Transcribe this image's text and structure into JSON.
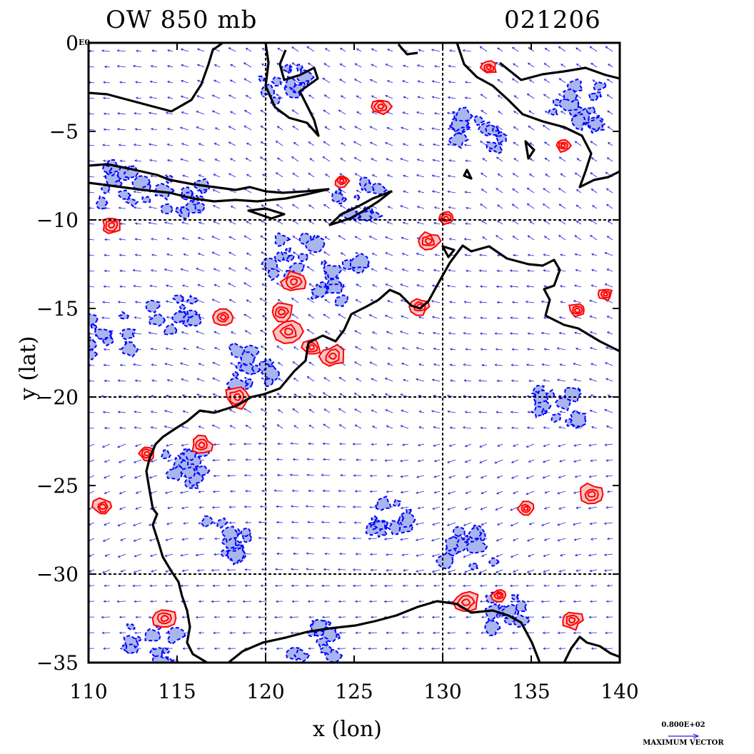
{
  "header": {
    "title_left": "OW 850 mb",
    "title_right": "021206",
    "lat_exponent": "E0"
  },
  "legend": {
    "vector_value": "0.800E+02",
    "vector_label": "MAXIMUM VECTOR"
  },
  "colors": {
    "positive_contour": "#ff0000",
    "positive_fill": "#f7c4c4",
    "negative_contour": "#0000ff",
    "negative_fill": "#a9b6ee",
    "coastline": "#000000",
    "vectors": "#2222dd",
    "grid": "#000000"
  },
  "chart_data": {
    "type": "contour",
    "title": "OW 850 mb",
    "subtitle": "021206",
    "xlabel": "x (lon)",
    "ylabel": "y (lat)",
    "xlim": [
      110,
      140
    ],
    "ylim": [
      -35,
      0
    ],
    "xticks": [
      110,
      115,
      120,
      125,
      130,
      135,
      140
    ],
    "xtick_labels": [
      "110",
      "115",
      "120",
      "125",
      "130",
      "135",
      "140"
    ],
    "yticks": [
      0,
      -5,
      -10,
      -15,
      -20,
      -25,
      -30,
      -35
    ],
    "ytick_labels": [
      "0",
      "−5",
      "−10",
      "−15",
      "−20",
      "−25",
      "−30",
      "−35"
    ],
    "grid_lon": [
      120,
      130
    ],
    "grid_lat": [
      -10,
      -20,
      -30
    ],
    "fields": [
      "Okubo-Weiss parameter contours (positive red, negative blue)",
      "wind vectors"
    ],
    "features": {
      "positive_cells": [
        {
          "lon": 111.3,
          "lat": -10.3
        },
        {
          "lon": 117.6,
          "lat": -15.5
        },
        {
          "lon": 118.4,
          "lat": -20.0
        },
        {
          "lon": 121.3,
          "lat": -16.3
        },
        {
          "lon": 122.6,
          "lat": -17.2
        },
        {
          "lon": 123.8,
          "lat": -17.7
        },
        {
          "lon": 120.9,
          "lat": -15.2
        },
        {
          "lon": 130.2,
          "lat": -9.9
        },
        {
          "lon": 129.2,
          "lat": -11.2
        },
        {
          "lon": 136.8,
          "lat": -5.8
        },
        {
          "lon": 137.6,
          "lat": -15.1
        },
        {
          "lon": 139.2,
          "lat": -14.2
        },
        {
          "lon": 110.8,
          "lat": -26.2
        },
        {
          "lon": 114.3,
          "lat": -32.5
        },
        {
          "lon": 113.3,
          "lat": -23.2
        },
        {
          "lon": 116.4,
          "lat": -22.7
        },
        {
          "lon": 134.7,
          "lat": -26.3
        },
        {
          "lon": 138.4,
          "lat": -25.5
        },
        {
          "lon": 131.3,
          "lat": -31.6
        },
        {
          "lon": 133.2,
          "lat": -31.2
        },
        {
          "lon": 137.3,
          "lat": -32.6
        },
        {
          "lon": 124.3,
          "lat": -7.8
        },
        {
          "lon": 126.5,
          "lat": -3.6
        },
        {
          "lon": 132.6,
          "lat": -1.4
        },
        {
          "lon": 121.6,
          "lat": -13.5
        },
        {
          "lon": 128.7,
          "lat": -14.9
        }
      ],
      "negative_regions": [
        {
          "lon": 121.0,
          "lat": -2.5
        },
        {
          "lon": 112.0,
          "lat": -8.0
        },
        {
          "lon": 115.5,
          "lat": -8.6
        },
        {
          "lon": 111.0,
          "lat": -16.5
        },
        {
          "lon": 114.8,
          "lat": -15.5
        },
        {
          "lon": 119.5,
          "lat": -18.5
        },
        {
          "lon": 121.5,
          "lat": -12.0
        },
        {
          "lon": 124.0,
          "lat": -13.5
        },
        {
          "lon": 127.5,
          "lat": -26.5
        },
        {
          "lon": 131.5,
          "lat": -28.5
        },
        {
          "lon": 133.5,
          "lat": -32.0
        },
        {
          "lon": 137.5,
          "lat": -3.5
        },
        {
          "lon": 115.0,
          "lat": -24.0
        },
        {
          "lon": 113.5,
          "lat": -34.0
        },
        {
          "lon": 123.0,
          "lat": -33.5
        },
        {
          "lon": 136.5,
          "lat": -20.5
        },
        {
          "lon": 132.0,
          "lat": -5.0
        },
        {
          "lon": 125.0,
          "lat": -9.0
        },
        {
          "lon": 118.0,
          "lat": -28.0
        }
      ]
    }
  }
}
